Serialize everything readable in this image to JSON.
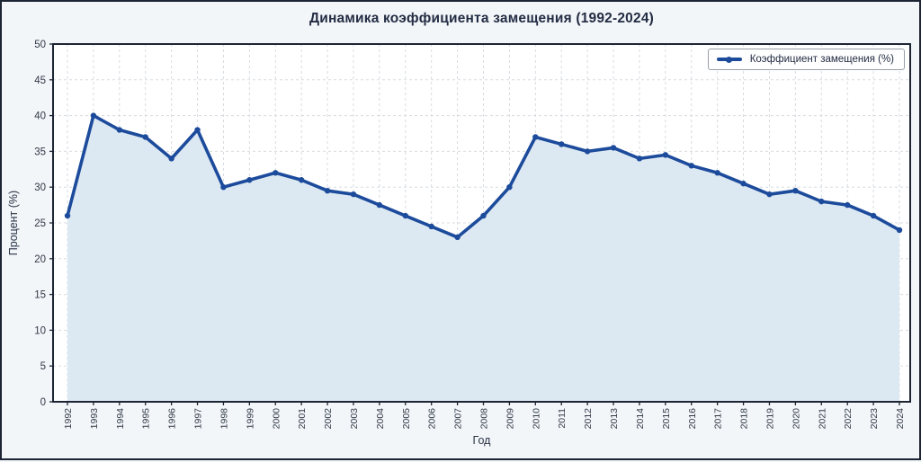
{
  "chart_data": {
    "type": "line",
    "title": "Динамика коэффициента замещения (1992-2024)",
    "xlabel": "Год",
    "ylabel": "Процент (%)",
    "ylim": [
      0,
      50
    ],
    "ytick_step": 5,
    "grid": true,
    "legend_position": "upper right",
    "categories": [
      "1992",
      "1993",
      "1994",
      "1995",
      "1996",
      "1997",
      "1998",
      "1999",
      "2000",
      "2001",
      "2002",
      "2003",
      "2004",
      "2005",
      "2006",
      "2007",
      "2008",
      "2009",
      "2010",
      "2011",
      "2012",
      "2013",
      "2014",
      "2015",
      "2016",
      "2017",
      "2018",
      "2019",
      "2020",
      "2021",
      "2022",
      "2023",
      "2024"
    ],
    "series": [
      {
        "name": "Коэффициент замещения (%)",
        "values": [
          26,
          40,
          38,
          37,
          34,
          38,
          30,
          31,
          32,
          31,
          29.5,
          29,
          27.5,
          26,
          24.5,
          23,
          26,
          30,
          37,
          36,
          35,
          35.5,
          34,
          34.5,
          33,
          32,
          30.5,
          29,
          29.5,
          28,
          27.5,
          26,
          24
        ]
      }
    ]
  },
  "colors": {
    "line": "#1c4b9c",
    "marker": "#1c4b9c",
    "area_fill": "#dde9f2",
    "figure_background": "#f2f6f9",
    "plot_background": "#ffffff",
    "grid": "#d7dbe0",
    "spine": "#1d2433",
    "tick_text": "#333a48",
    "legend_border": "#9aa0a8",
    "legend_background": "#fefefe"
  }
}
